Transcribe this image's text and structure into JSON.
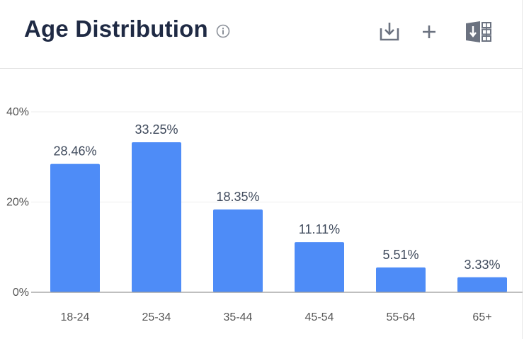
{
  "header": {
    "title": "Age Distribution",
    "icons": {
      "info": "info-icon",
      "download": "download-icon",
      "add": "plus-icon",
      "export": "excel-export-icon"
    }
  },
  "colors": {
    "bar": "#4e8cf7",
    "title": "#1f2a44",
    "axis_text": "#555555",
    "data_label": "#3f4a5c",
    "grid": "#eeeeee",
    "baseline": "#999999",
    "icon": "#6b7280"
  },
  "chart_data": {
    "type": "bar",
    "title": "Age Distribution",
    "xlabel": "",
    "ylabel": "",
    "categories": [
      "18-24",
      "25-34",
      "35-44",
      "45-54",
      "55-64",
      "65+"
    ],
    "values": [
      28.46,
      33.25,
      18.35,
      11.11,
      5.51,
      3.33
    ],
    "data_labels": [
      "28.46%",
      "33.25%",
      "18.35%",
      "11.11%",
      "5.51%",
      "3.33%"
    ],
    "ylim": [
      0,
      40
    ],
    "yticks": [
      0,
      20,
      40
    ],
    "ytick_labels": [
      "0%",
      "20%",
      "40%"
    ],
    "grid": true,
    "legend": "none"
  }
}
